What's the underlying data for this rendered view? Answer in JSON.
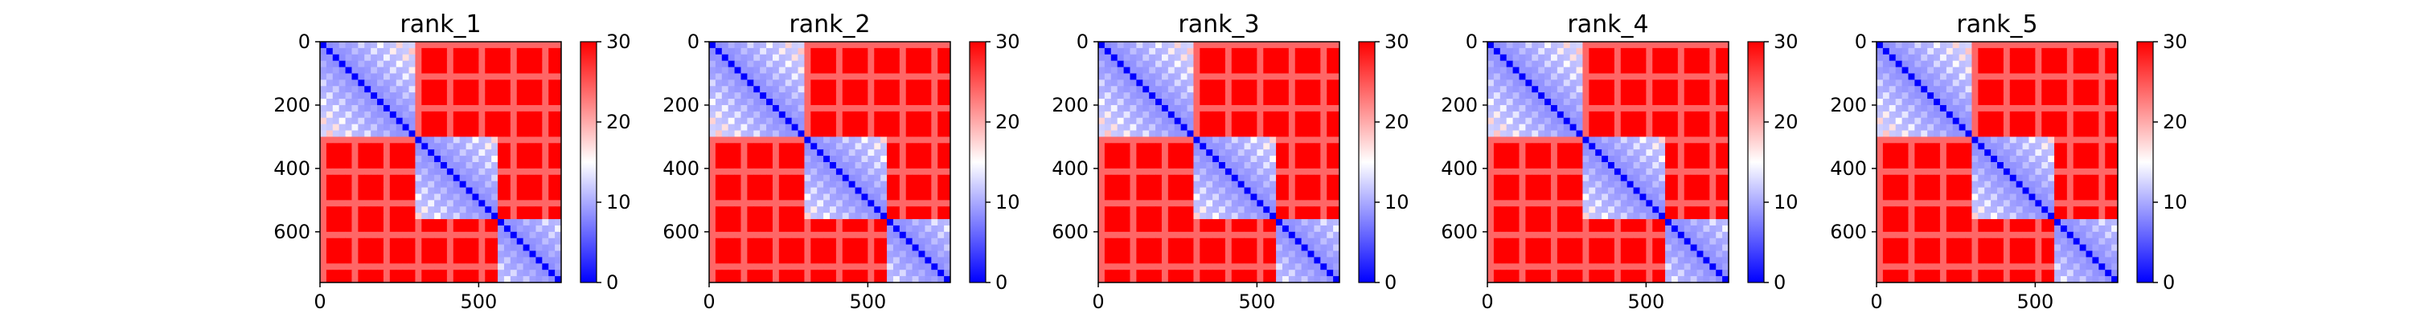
{
  "chart_data": [
    {
      "type": "heatmap",
      "title": "rank_1",
      "xlim": [
        0,
        760
      ],
      "ylim": [
        760,
        0
      ],
      "xticks": [
        0,
        500
      ],
      "yticks": [
        0,
        200,
        400,
        600
      ],
      "colorbar": {
        "min": 0,
        "max": 30,
        "ticks": [
          0,
          10,
          20,
          30
        ],
        "colormap": "bwr"
      },
      "blocks": [
        {
          "start": 0,
          "end": 300
        },
        {
          "start": 300,
          "end": 560
        },
        {
          "start": 560,
          "end": 760
        }
      ],
      "intra_block_distance": 8,
      "inter_block_distance": 30,
      "diagonal_distance": 0
    },
    {
      "type": "heatmap",
      "title": "rank_2",
      "xlim": [
        0,
        760
      ],
      "ylim": [
        760,
        0
      ],
      "xticks": [
        0,
        500
      ],
      "yticks": [
        0,
        200,
        400,
        600
      ],
      "colorbar": {
        "min": 0,
        "max": 30,
        "ticks": [
          0,
          10,
          20,
          30
        ],
        "colormap": "bwr"
      },
      "blocks": [
        {
          "start": 0,
          "end": 300
        },
        {
          "start": 300,
          "end": 560
        },
        {
          "start": 560,
          "end": 760
        }
      ],
      "intra_block_distance": 8,
      "inter_block_distance": 30,
      "diagonal_distance": 0
    },
    {
      "type": "heatmap",
      "title": "rank_3",
      "xlim": [
        0,
        760
      ],
      "ylim": [
        760,
        0
      ],
      "xticks": [
        0,
        500
      ],
      "yticks": [
        0,
        200,
        400,
        600
      ],
      "colorbar": {
        "min": 0,
        "max": 30,
        "ticks": [
          0,
          10,
          20,
          30
        ],
        "colormap": "bwr"
      },
      "blocks": [
        {
          "start": 0,
          "end": 300
        },
        {
          "start": 300,
          "end": 560
        },
        {
          "start": 560,
          "end": 760
        }
      ],
      "intra_block_distance": 8,
      "inter_block_distance": 30,
      "diagonal_distance": 0
    },
    {
      "type": "heatmap",
      "title": "rank_4",
      "xlim": [
        0,
        760
      ],
      "ylim": [
        760,
        0
      ],
      "xticks": [
        0,
        500
      ],
      "yticks": [
        0,
        200,
        400,
        600
      ],
      "colorbar": {
        "min": 0,
        "max": 30,
        "ticks": [
          0,
          10,
          20,
          30
        ],
        "colormap": "bwr"
      },
      "blocks": [
        {
          "start": 0,
          "end": 300
        },
        {
          "start": 300,
          "end": 560
        },
        {
          "start": 560,
          "end": 760
        }
      ],
      "intra_block_distance": 8,
      "inter_block_distance": 30,
      "diagonal_distance": 0
    },
    {
      "type": "heatmap",
      "title": "rank_5",
      "xlim": [
        0,
        760
      ],
      "ylim": [
        760,
        0
      ],
      "xticks": [
        0,
        500
      ],
      "yticks": [
        0,
        200,
        400,
        600
      ],
      "colorbar": {
        "min": 0,
        "max": 30,
        "ticks": [
          0,
          10,
          20,
          30
        ],
        "colormap": "bwr"
      },
      "blocks": [
        {
          "start": 0,
          "end": 300
        },
        {
          "start": 300,
          "end": 560
        },
        {
          "start": 560,
          "end": 760
        }
      ],
      "intra_block_distance": 8,
      "inter_block_distance": 30,
      "diagonal_distance": 0
    }
  ],
  "colors": {
    "low": "#0000ff",
    "mid": "#ffffff",
    "high": "#ff0000",
    "axis": "#000000"
  }
}
